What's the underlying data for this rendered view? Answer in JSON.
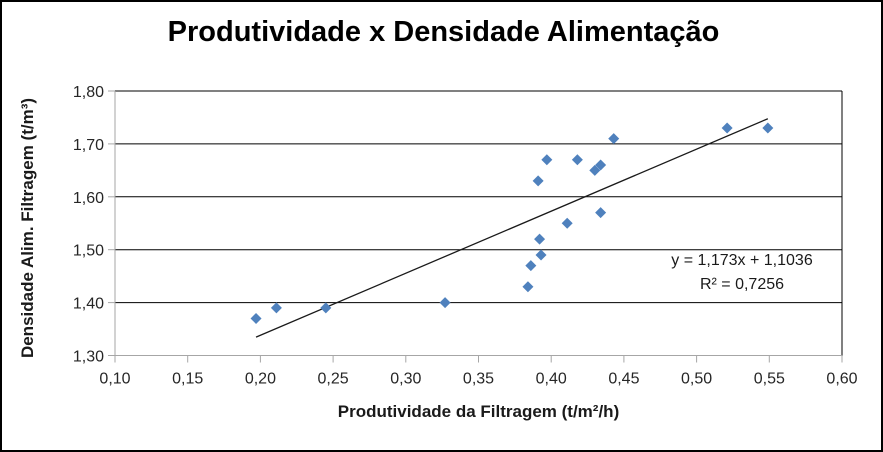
{
  "chart": {
    "background_color": "#FFFFFF",
    "outer_border_color": "#000000"
  },
  "chart_data": {
    "type": "scatter",
    "title": "Produtividade x Densidade Alimentação",
    "xlabel": "Produtividade da Filtragem (t/m²/h)",
    "ylabel": "Densidade Alim. Filtragem (t/m³)",
    "xlim": [
      0.1,
      0.6
    ],
    "ylim": [
      1.3,
      1.8
    ],
    "x_tick_values": [
      0.1,
      0.15,
      0.2,
      0.25,
      0.3,
      0.35,
      0.4,
      0.45,
      0.5,
      0.55,
      0.6
    ],
    "x_tick_labels": [
      "0,10",
      "0,15",
      "0,20",
      "0,25",
      "0,30",
      "0,35",
      "0,40",
      "0,45",
      "0,50",
      "0,55",
      "0,60"
    ],
    "y_tick_values": [
      1.3,
      1.4,
      1.5,
      1.6,
      1.7,
      1.8
    ],
    "y_tick_labels": [
      "1,30",
      "1,40",
      "1,50",
      "1,60",
      "1,70",
      "1,80"
    ],
    "grid": {
      "horizontal": true,
      "vertical": false,
      "color": "#000000"
    },
    "axis_line_color": "#A6A6A6",
    "legend": "none",
    "points": [
      [
        0.197,
        1.37
      ],
      [
        0.211,
        1.39
      ],
      [
        0.245,
        1.39
      ],
      [
        0.327,
        1.4
      ],
      [
        0.384,
        1.43
      ],
      [
        0.386,
        1.47
      ],
      [
        0.391,
        1.63
      ],
      [
        0.392,
        1.52
      ],
      [
        0.393,
        1.49
      ],
      [
        0.397,
        1.67
      ],
      [
        0.411,
        1.55
      ],
      [
        0.418,
        1.67
      ],
      [
        0.43,
        1.65
      ],
      [
        0.434,
        1.66
      ],
      [
        0.434,
        1.57
      ],
      [
        0.443,
        1.71
      ],
      [
        0.521,
        1.73
      ],
      [
        0.549,
        1.73
      ]
    ],
    "marker": {
      "shape": "diamond",
      "color": "#4F81BD",
      "size": 11
    },
    "trendline": {
      "slope": 1.173,
      "intercept": 1.1036,
      "x_start": 0.197,
      "x_end": 0.549,
      "color": "#1a1a1a",
      "equation_label": "y = 1,173x + 1,1036",
      "r2_label": "R² = 0,7256"
    }
  }
}
